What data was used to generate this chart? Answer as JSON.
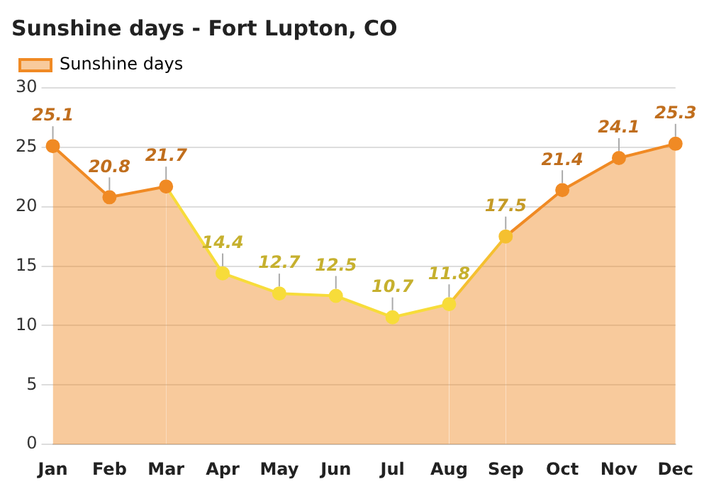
{
  "chart_data": {
    "type": "area",
    "title": "Sunshine days - Fort Lupton, CO",
    "categories": [
      "Jan",
      "Feb",
      "Mar",
      "Apr",
      "May",
      "Jun",
      "Jul",
      "Aug",
      "Sep",
      "Oct",
      "Nov",
      "Dec"
    ],
    "series": [
      {
        "name": "Sunshine days",
        "color": "#f08a24",
        "colors": [
          "#f08a24",
          "#f08a24",
          "#f08a24",
          "#f7dc3a",
          "#f7dc3a",
          "#f7dc3a",
          "#f7dc3a",
          "#f7dc3a",
          "#f5c030",
          "#f08a24",
          "#f08a24",
          "#f08a24"
        ],
        "values": [
          25.1,
          20.8,
          21.7,
          14.4,
          12.7,
          12.5,
          10.7,
          11.8,
          17.5,
          21.4,
          24.1,
          25.3
        ]
      }
    ],
    "ylim": [
      0,
      30
    ],
    "yticks": [
      0,
      5,
      10,
      15,
      20,
      25,
      30
    ],
    "grid": "y",
    "legend": "top left",
    "marker": "circle",
    "line_style": "solid",
    "data_labels": true
  }
}
